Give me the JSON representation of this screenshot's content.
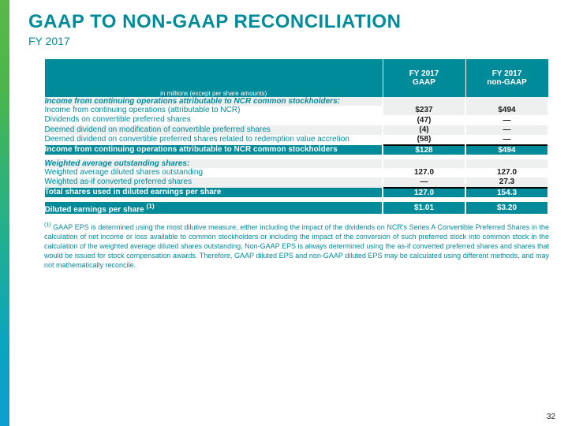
{
  "title": "GAAP TO NON-GAAP RECONCILIATION",
  "subtitle": "FY 2017",
  "header_note": "in millions (except per share amounts)",
  "col1": "FY 2017\nGAAP",
  "col2": "FY 2017\nnon-GAAP",
  "section1": "Income from continuing operations attributable to NCR common stockholders:",
  "rows1": [
    {
      "label": "Income from continuing operations (attributable to NCR)",
      "v1": "$237",
      "v2": "$494"
    },
    {
      "label": "Dividends on convertible preferred shares",
      "v1": "(47)",
      "v2": "—"
    },
    {
      "label": "Deemed dividend on modification of convertible preferred shares",
      "v1": "(4)",
      "v2": "—"
    },
    {
      "label": "Deemed dividend on convertible preferred shares related to redemption value accretion",
      "v1": "(58)",
      "v2": "—"
    }
  ],
  "total1": {
    "label": "Income from continuing operations attributable to NCR common stockholders",
    "v1": "$128",
    "v2": "$494"
  },
  "section2": "Weighted average outstanding shares:",
  "rows2": [
    {
      "label": "Weighted average diluted shares outstanding",
      "v1": "127.0",
      "v2": "127.0"
    },
    {
      "label": "Weighted as-if converted preferred shares",
      "v1": "—",
      "v2": "27.3"
    }
  ],
  "total2": {
    "label": "Total shares used in diluted earnings per share",
    "v1": "127.0",
    "v2": "154.3"
  },
  "total3": {
    "label": "Diluted earnings per share ",
    "sup": "(1)",
    "v1": "$1.01",
    "v2": "$3.20"
  },
  "footnote_sup": "(1)",
  "footnote": " GAAP EPS is determined using the most dilutive measure, either including the impact of the dividends on NCR's Series A Convertible Preferred Shares in the calculation of net income or loss available to common stockholders or including the impact of the conversion of such preferred stock into common stock in the calculation of the weighted average diluted shares outstanding. Non-GAAP EPS is always determined using the as-if converted preferred shares and shares that would be issued for stock compensation awards. Therefore, GAAP diluted EPS and non-GAAP diluted EPS may be calculated using different methods, and may not mathematically reconcile.",
  "page_number": "32",
  "colors": {
    "teal": "#008b9b",
    "light": "#eef0ef"
  }
}
